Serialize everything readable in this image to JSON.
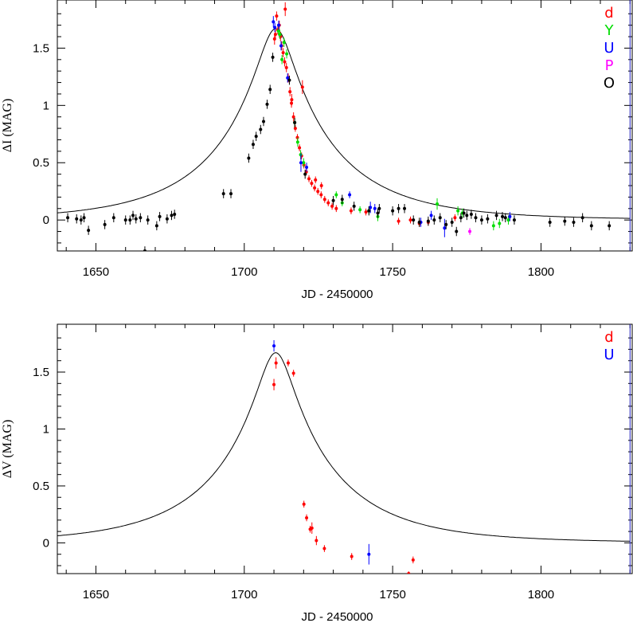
{
  "chart_data": [
    {
      "type": "scatter",
      "xlabel": "JD - 2450000",
      "ylabel": "ΔI (MAG)",
      "xlim": [
        1637,
        1831
      ],
      "ylim": [
        -0.27,
        1.92
      ],
      "xticks": [
        1650,
        1700,
        1750,
        1800
      ],
      "xtick_labels": [
        "1650",
        "1700",
        "1750",
        "1800"
      ],
      "yticks": [
        0,
        0.5,
        1,
        1.5
      ],
      "ytick_labels": [
        "0",
        "0.5",
        "1",
        "1.5"
      ],
      "legend_position": "right",
      "model_curve": {
        "t0": 1710.6,
        "peak": 1.67,
        "u0": 0.14,
        "tE": 40
      },
      "series": [
        {
          "name": "d",
          "color": "#ff0000",
          "points": [
            [
              1710.2,
              1.58,
              0.05
            ],
            [
              1710.5,
              1.62,
              0.04
            ],
            [
              1710.9,
              1.78,
              0.04
            ],
            [
              1711.3,
              1.66,
              0.04
            ],
            [
              1711.8,
              1.7,
              0.04
            ],
            [
              1712.2,
              1.6,
              0.04
            ],
            [
              1712.6,
              1.52,
              0.04
            ],
            [
              1713.1,
              1.46,
              0.04
            ],
            [
              1713.6,
              1.38,
              0.04
            ],
            [
              1714.2,
              1.33,
              0.04
            ],
            [
              1714.8,
              1.24,
              0.04
            ],
            [
              1715.4,
              1.12,
              0.04
            ],
            [
              1715.9,
              1.02,
              0.04
            ],
            [
              1716.6,
              0.9,
              0.04
            ],
            [
              1717.2,
              0.8,
              0.03
            ],
            [
              1717.9,
              0.72,
              0.03
            ],
            [
              1718.6,
              0.63,
              0.03
            ],
            [
              1719.3,
              0.56,
              0.03
            ],
            [
              1720.1,
              0.48,
              0.03
            ],
            [
              1720.9,
              0.42,
              0.03
            ],
            [
              1721.8,
              0.36,
              0.03
            ],
            [
              1722.7,
              0.32,
              0.03
            ],
            [
              1723.7,
              0.28,
              0.03
            ],
            [
              1724.8,
              0.25,
              0.03
            ],
            [
              1725.9,
              0.22,
              0.03
            ],
            [
              1727.1,
              0.18,
              0.03
            ],
            [
              1728.3,
              0.15,
              0.03
            ],
            [
              1729.6,
              0.12,
              0.03
            ],
            [
              1731.0,
              0.1,
              0.03
            ],
            [
              1713.8,
              1.84,
              0.06
            ],
            [
              1719.6,
              1.16,
              0.06
            ],
            [
              1716.0,
              1.05,
              0.05
            ],
            [
              1724.0,
              0.35,
              0.03
            ],
            [
              1726.0,
              0.3,
              0.03
            ],
            [
              1736.0,
              0.08,
              0.03
            ],
            [
              1741.0,
              0.07,
              0.03
            ],
            [
              1752.0,
              -0.01,
              0.03
            ],
            [
              1756.0,
              0.0,
              0.03
            ],
            [
              1759.0,
              -0.03,
              0.03
            ],
            [
              1762.0,
              -0.02,
              0.03
            ],
            [
              1771.0,
              0.02,
              0.03
            ]
          ]
        },
        {
          "name": "Y",
          "color": "#00dd00",
          "points": [
            [
              1711.5,
              1.65,
              0.04
            ],
            [
              1712.0,
              1.62,
              0.04
            ],
            [
              1712.7,
              1.4,
              0.04
            ],
            [
              1713.4,
              1.55,
              0.04
            ],
            [
              1714.3,
              1.45,
              0.04
            ],
            [
              1717.0,
              0.85,
              0.04
            ],
            [
              1718.0,
              0.68,
              0.04
            ],
            [
              1719.0,
              0.57,
              0.04
            ],
            [
              1720.0,
              0.5,
              0.04
            ],
            [
              1731.0,
              0.22,
              0.03
            ],
            [
              1733.0,
              0.15,
              0.03
            ],
            [
              1739.0,
              0.09,
              0.03
            ],
            [
              1742.0,
              0.08,
              0.03
            ],
            [
              1745.0,
              0.03,
              0.04
            ],
            [
              1765.0,
              0.14,
              0.05
            ],
            [
              1772.0,
              0.08,
              0.04
            ],
            [
              1773.5,
              0.06,
              0.04
            ],
            [
              1784.0,
              -0.05,
              0.04
            ],
            [
              1786.0,
              -0.03,
              0.04
            ],
            [
              1789.0,
              0.0,
              0.04
            ]
          ]
        },
        {
          "name": "U",
          "color": "#0000ff",
          "points": [
            [
              1709.8,
              1.73,
              0.05
            ],
            [
              1710.3,
              1.68,
              0.04
            ],
            [
              1711.6,
              1.7,
              0.04
            ],
            [
              1712.4,
              1.52,
              0.04
            ],
            [
              1714.6,
              1.24,
              0.04
            ],
            [
              1719.1,
              0.5,
              0.08
            ],
            [
              1721.0,
              0.46,
              0.04
            ],
            [
              1735.5,
              0.22,
              0.03
            ],
            [
              1742.5,
              0.11,
              0.05
            ],
            [
              1744.0,
              0.1,
              0.04
            ],
            [
              1759.5,
              -0.02,
              0.04
            ],
            [
              1763.0,
              0.04,
              0.04
            ],
            [
              1767.5,
              -0.07,
              0.08
            ],
            [
              1789.5,
              0.03,
              0.04
            ]
          ]
        },
        {
          "name": "P",
          "color": "#ff00ff",
          "points": [
            [
              1776.0,
              -0.1,
              0.03
            ]
          ]
        },
        {
          "name": "O",
          "color": "#000000",
          "points": [
            [
              1640.5,
              0.02,
              0.04
            ],
            [
              1643.5,
              0.01,
              0.04
            ],
            [
              1645.0,
              0.0,
              0.04
            ],
            [
              1646.0,
              0.02,
              0.04
            ],
            [
              1647.5,
              -0.09,
              0.04
            ],
            [
              1653.0,
              -0.04,
              0.04
            ],
            [
              1656.0,
              0.02,
              0.04
            ],
            [
              1660.0,
              0.0,
              0.04
            ],
            [
              1661.5,
              0.0,
              0.04
            ],
            [
              1662.5,
              0.04,
              0.04
            ],
            [
              1663.5,
              0.01,
              0.04
            ],
            [
              1665.0,
              0.02,
              0.04
            ],
            [
              1666.5,
              -0.27,
              0.04
            ],
            [
              1667.5,
              0.0,
              0.04
            ],
            [
              1670.5,
              -0.05,
              0.04
            ],
            [
              1671.5,
              0.03,
              0.04
            ],
            [
              1674.0,
              0.01,
              0.04
            ],
            [
              1675.5,
              0.04,
              0.04
            ],
            [
              1676.5,
              0.05,
              0.04
            ],
            [
              1693.0,
              0.23,
              0.04
            ],
            [
              1695.5,
              0.23,
              0.04
            ],
            [
              1701.5,
              0.54,
              0.04
            ],
            [
              1703.0,
              0.66,
              0.04
            ],
            [
              1704.0,
              0.73,
              0.04
            ],
            [
              1705.5,
              0.79,
              0.04
            ],
            [
              1706.5,
              0.86,
              0.04
            ],
            [
              1707.7,
              1.01,
              0.04
            ],
            [
              1708.7,
              1.14,
              0.04
            ],
            [
              1709.6,
              1.42,
              0.04
            ],
            [
              1715.2,
              1.22,
              0.04
            ],
            [
              1717.0,
              0.85,
              0.04
            ],
            [
              1720.5,
              0.4,
              0.04
            ],
            [
              1730.0,
              0.17,
              0.04
            ],
            [
              1733.0,
              0.18,
              0.04
            ],
            [
              1737.0,
              0.12,
              0.04
            ],
            [
              1742.0,
              0.08,
              0.04
            ],
            [
              1745.0,
              0.06,
              0.04
            ],
            [
              1745.5,
              0.1,
              0.04
            ],
            [
              1750.0,
              0.08,
              0.04
            ],
            [
              1752.0,
              0.1,
              0.04
            ],
            [
              1754.0,
              0.1,
              0.04
            ],
            [
              1757.0,
              0.0,
              0.04
            ],
            [
              1759.0,
              -0.02,
              0.04
            ],
            [
              1762.0,
              -0.01,
              0.04
            ],
            [
              1764.0,
              0.0,
              0.04
            ],
            [
              1766.0,
              0.02,
              0.04
            ],
            [
              1768.0,
              -0.04,
              0.04
            ],
            [
              1770.0,
              -0.02,
              0.04
            ],
            [
              1771.5,
              -0.1,
              0.04
            ],
            [
              1773.0,
              0.02,
              0.04
            ],
            [
              1774.0,
              0.06,
              0.04
            ],
            [
              1775.0,
              0.04,
              0.04
            ],
            [
              1776.5,
              0.05,
              0.04
            ],
            [
              1778.0,
              0.02,
              0.04
            ],
            [
              1780.0,
              0.0,
              0.04
            ],
            [
              1782.0,
              0.01,
              0.04
            ],
            [
              1785.0,
              0.04,
              0.04
            ],
            [
              1787.0,
              0.03,
              0.04
            ],
            [
              1788.0,
              0.02,
              0.04
            ],
            [
              1791.0,
              0.0,
              0.04
            ],
            [
              1803.0,
              -0.02,
              0.04
            ],
            [
              1808.0,
              -0.01,
              0.04
            ],
            [
              1811.0,
              -0.02,
              0.04
            ],
            [
              1814.0,
              0.02,
              0.04
            ],
            [
              1817.0,
              -0.05,
              0.04
            ],
            [
              1823.0,
              -0.05,
              0.04
            ]
          ]
        }
      ]
    },
    {
      "type": "scatter",
      "xlabel": "JD - 2450000",
      "ylabel": "ΔV (MAG)",
      "xlim": [
        1637,
        1831
      ],
      "ylim": [
        -0.27,
        1.92
      ],
      "xticks": [
        1650,
        1700,
        1750,
        1800
      ],
      "xtick_labels": [
        "1650",
        "1700",
        "1750",
        "1800"
      ],
      "yticks": [
        0,
        0.5,
        1,
        1.5
      ],
      "ytick_labels": [
        "0",
        "0.5",
        "1",
        "1.5"
      ],
      "legend_position": "right",
      "model_curve": {
        "t0": 1710.6,
        "peak": 1.67,
        "u0": 0.14,
        "tE": 40
      },
      "series": [
        {
          "name": "d",
          "color": "#ff0000",
          "points": [
            [
              1710.0,
              1.39,
              0.05
            ],
            [
              1710.7,
              1.58,
              0.05
            ],
            [
              1714.8,
              1.58,
              0.03
            ],
            [
              1716.6,
              1.49,
              0.03
            ],
            [
              1720.1,
              0.34,
              0.03
            ],
            [
              1721.0,
              0.22,
              0.03
            ],
            [
              1722.2,
              0.12,
              0.03
            ],
            [
              1722.8,
              0.13,
              0.05
            ],
            [
              1724.3,
              0.02,
              0.04
            ],
            [
              1727.0,
              -0.05,
              0.03
            ],
            [
              1736.2,
              -0.12,
              0.03
            ],
            [
              1756.9,
              -0.15,
              0.03
            ],
            [
              1755.4,
              -0.27,
              0.02
            ]
          ]
        },
        {
          "name": "U",
          "color": "#0000ff",
          "points": [
            [
              1710.0,
              1.73,
              0.05
            ],
            [
              1742.0,
              -0.1,
              0.09
            ]
          ]
        }
      ]
    }
  ]
}
